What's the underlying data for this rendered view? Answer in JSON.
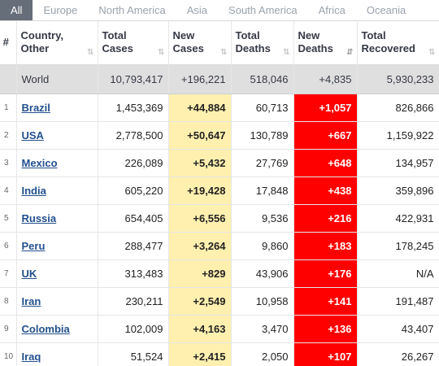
{
  "tabs": [
    "All",
    "Europe",
    "North America",
    "Asia",
    "South America",
    "Africa",
    "Oceania"
  ],
  "columns": [
    "#",
    "Country, Other",
    "Total Cases",
    "New Cases",
    "Total Deaths",
    "New Deaths",
    "Total Recovered"
  ],
  "sort_icons": {
    "default": "⇅",
    "active": "⇵"
  },
  "world": {
    "country": "World",
    "total_cases": "10,793,417",
    "new_cases": "+196,221",
    "total_deaths": "518,046",
    "new_deaths": "+4,835",
    "total_recovered": "5,930,233"
  },
  "rows": [
    {
      "rank": "1",
      "country": "Brazil",
      "total_cases": "1,453,369",
      "new_cases": "+44,884",
      "total_deaths": "60,713",
      "new_deaths": "+1,057",
      "total_recovered": "826,866"
    },
    {
      "rank": "2",
      "country": "USA",
      "total_cases": "2,778,500",
      "new_cases": "+50,647",
      "total_deaths": "130,789",
      "new_deaths": "+667",
      "total_recovered": "1,159,922"
    },
    {
      "rank": "3",
      "country": "Mexico",
      "total_cases": "226,089",
      "new_cases": "+5,432",
      "total_deaths": "27,769",
      "new_deaths": "+648",
      "total_recovered": "134,957"
    },
    {
      "rank": "4",
      "country": "India",
      "total_cases": "605,220",
      "new_cases": "+19,428",
      "total_deaths": "17,848",
      "new_deaths": "+438",
      "total_recovered": "359,896"
    },
    {
      "rank": "5",
      "country": "Russia",
      "total_cases": "654,405",
      "new_cases": "+6,556",
      "total_deaths": "9,536",
      "new_deaths": "+216",
      "total_recovered": "422,931"
    },
    {
      "rank": "6",
      "country": "Peru",
      "total_cases": "288,477",
      "new_cases": "+3,264",
      "total_deaths": "9,860",
      "new_deaths": "+183",
      "total_recovered": "178,245"
    },
    {
      "rank": "7",
      "country": "UK",
      "total_cases": "313,483",
      "new_cases": "+829",
      "total_deaths": "43,906",
      "new_deaths": "+176",
      "total_recovered": "N/A"
    },
    {
      "rank": "8",
      "country": "Iran",
      "total_cases": "230,211",
      "new_cases": "+2,549",
      "total_deaths": "10,958",
      "new_deaths": "+141",
      "total_recovered": "191,487"
    },
    {
      "rank": "9",
      "country": "Colombia",
      "total_cases": "102,009",
      "new_cases": "+4,163",
      "total_deaths": "3,470",
      "new_deaths": "+136",
      "total_recovered": "43,407"
    },
    {
      "rank": "10",
      "country": "Iraq",
      "total_cases": "51,524",
      "new_cases": "+2,415",
      "total_deaths": "2,050",
      "new_deaths": "+107",
      "total_recovered": "26,267"
    }
  ],
  "colors": {
    "new_cases_bg": "#fff0b0",
    "new_deaths_bg": "#ff0000",
    "world_row_bg": "#dfdfdf",
    "link": "#23508e",
    "active_tab": "#666e7a"
  }
}
